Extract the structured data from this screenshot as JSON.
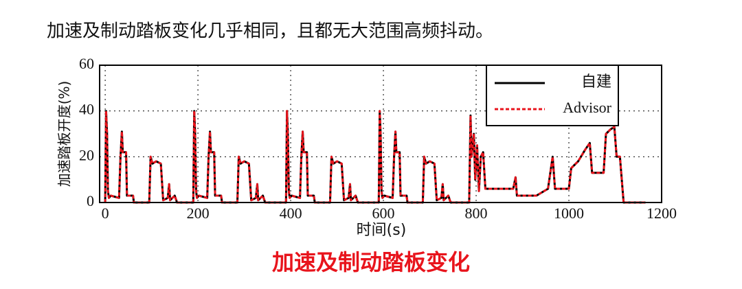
{
  "heading": "加速及制动踏板变化几乎相同，且都无大范围高频抖动。",
  "caption": "加速及制动踏板变化",
  "chart_data": {
    "type": "line",
    "xlabel": "时间(s)",
    "ylabel": "加速踏板开度(%)",
    "x": [
      0,
      2,
      4,
      6,
      8,
      12,
      30,
      33,
      36,
      38,
      45,
      47,
      60,
      62,
      95,
      98,
      102,
      110,
      120,
      125,
      135,
      138,
      140,
      150,
      155,
      185,
      190,
      192,
      194,
      196,
      198,
      202,
      220,
      223,
      226,
      228,
      235,
      237,
      250,
      252,
      285,
      288,
      292,
      300,
      310,
      315,
      325,
      328,
      330,
      340,
      345,
      375,
      390,
      392,
      394,
      396,
      398,
      402,
      420,
      423,
      426,
      428,
      435,
      437,
      450,
      452,
      485,
      488,
      492,
      500,
      510,
      515,
      525,
      528,
      530,
      540,
      545,
      575,
      590,
      592,
      594,
      596,
      598,
      602,
      620,
      623,
      626,
      628,
      635,
      637,
      650,
      652,
      685,
      688,
      692,
      700,
      710,
      715,
      725,
      728,
      730,
      740,
      745,
      775,
      785,
      788,
      790,
      795,
      798,
      802,
      806,
      810,
      815,
      820,
      880,
      885,
      888,
      930,
      955,
      965,
      970,
      1000,
      1005,
      1020,
      1035,
      1045,
      1050,
      1075,
      1080,
      1090,
      1098,
      1103,
      1110,
      1118,
      1165
    ],
    "series": [
      {
        "name": "自建",
        "color": "#000000",
        "dashed": false,
        "values": [
          0,
          40,
          30,
          5,
          2,
          3,
          2,
          20,
          31,
          22,
          22,
          3,
          3,
          0,
          0,
          20,
          17,
          18,
          17,
          1,
          2,
          8,
          1,
          3,
          0,
          0,
          0,
          40,
          30,
          5,
          2,
          3,
          2,
          20,
          31,
          22,
          22,
          3,
          3,
          0,
          0,
          20,
          17,
          18,
          17,
          1,
          2,
          8,
          1,
          3,
          0,
          0,
          0,
          40,
          30,
          5,
          2,
          3,
          2,
          20,
          31,
          22,
          22,
          3,
          3,
          0,
          0,
          20,
          17,
          18,
          17,
          1,
          2,
          8,
          1,
          3,
          0,
          0,
          0,
          40,
          30,
          5,
          2,
          3,
          2,
          20,
          31,
          22,
          22,
          3,
          3,
          0,
          0,
          20,
          17,
          18,
          17,
          1,
          2,
          8,
          1,
          3,
          0,
          0,
          0,
          38,
          20,
          30,
          10,
          25,
          5,
          20,
          22,
          6,
          6,
          11,
          3,
          3,
          6,
          20,
          6,
          6,
          15,
          18,
          23,
          26,
          13,
          13,
          30,
          32,
          33,
          20,
          20,
          0,
          0
        ]
      },
      {
        "name": "Advisor",
        "color": "#e8141c",
        "dashed": true,
        "values": [
          0,
          40,
          30,
          5,
          2,
          3,
          2,
          20,
          31,
          22,
          22,
          3,
          3,
          0,
          0,
          20,
          17,
          18,
          17,
          1,
          2,
          8,
          1,
          3,
          0,
          0,
          0,
          40,
          30,
          5,
          2,
          3,
          2,
          20,
          31,
          22,
          22,
          3,
          3,
          0,
          0,
          20,
          17,
          18,
          17,
          1,
          2,
          8,
          1,
          3,
          0,
          0,
          0,
          40,
          30,
          5,
          2,
          3,
          2,
          20,
          31,
          22,
          22,
          3,
          3,
          0,
          0,
          20,
          17,
          18,
          17,
          1,
          2,
          8,
          1,
          3,
          0,
          0,
          0,
          40,
          30,
          5,
          2,
          3,
          2,
          20,
          31,
          22,
          22,
          3,
          3,
          0,
          0,
          20,
          17,
          18,
          17,
          1,
          2,
          8,
          1,
          3,
          0,
          0,
          0,
          38,
          20,
          30,
          10,
          25,
          5,
          20,
          22,
          6,
          6,
          11,
          3,
          3,
          6,
          20,
          6,
          6,
          15,
          18,
          23,
          26,
          13,
          13,
          30,
          32,
          33,
          20,
          20,
          0,
          0
        ]
      }
    ],
    "xlim": [
      -12,
      1200
    ],
    "xticks": [
      0,
      200,
      400,
      600,
      800,
      1000,
      1200
    ],
    "ylim": [
      0,
      60
    ],
    "yticks": [
      0,
      20,
      40,
      60
    ],
    "grid": true,
    "legend": "upper right"
  }
}
